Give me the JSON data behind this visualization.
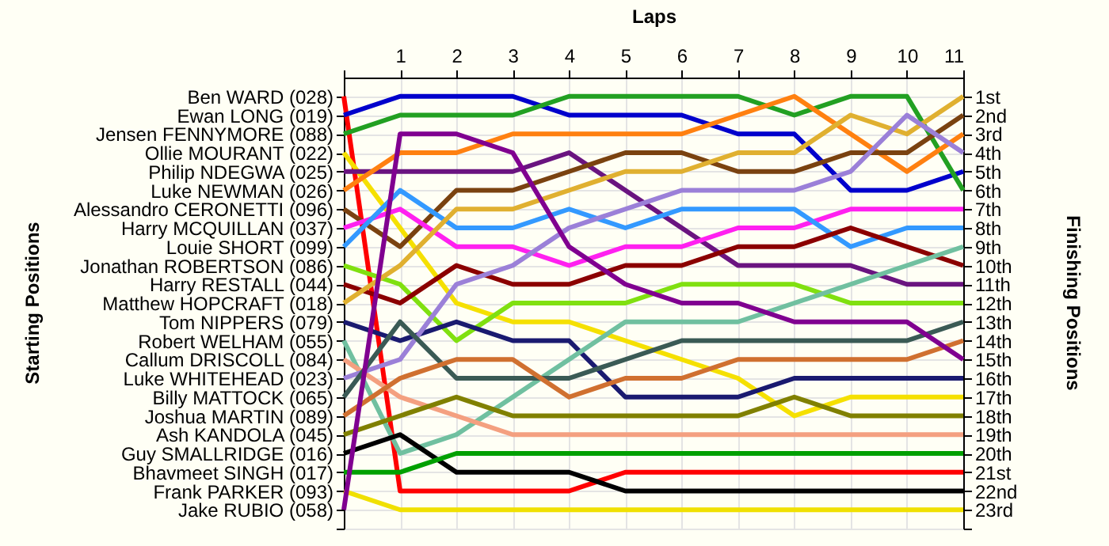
{
  "chart_data": {
    "type": "line",
    "xlabel": "Laps",
    "ylabel": "Finishing Positions",
    "grid": true,
    "annotations": [
      "Starting Positions",
      "Ben WARD (028)",
      "Ewan LONG (019)",
      "Jensen FENNYMORE (088)",
      "Ollie MOURANT (022)",
      "Philip NDEGWA (025)",
      "Luke NEWMAN (026)",
      "Alessandro CERONETTI (096)",
      "Harry MCQUILLAN (037)",
      "Louie SHORT (099)",
      "Jonathan ROBERTSON (086)",
      "Harry RESTALL (044)",
      "Matthew HOPCRAFT (018)",
      "Tom NIPPERS (079)",
      "Robert WELHAM (055)",
      "Callum DRISCOLL (084)",
      "Luke WHITEHEAD (023)",
      "Billy MATTOCK (065)",
      "Joshua MARTIN (089)",
      "Ash KANDOLA (045)",
      "Guy SMALLRIDGE (016)",
      "Bhavmeet SINGH (017)",
      "Frank PARKER (093)",
      "Jake RUBIO (058)"
    ],
    "x": [
      0,
      1,
      2,
      3,
      4,
      5,
      6,
      7,
      8,
      9,
      10,
      11
    ],
    "xlim": [
      0,
      11
    ],
    "xticks": [
      {
        "value": 0,
        "label": null
      },
      1,
      2,
      3,
      4,
      5,
      6,
      7,
      8,
      9,
      10,
      11
    ],
    "ylim": [
      24,
      0
    ],
    "yticks": [
      {
        "value": 1,
        "label": "1st"
      },
      {
        "value": 2,
        "label": "2nd"
      },
      {
        "value": 3,
        "label": "3rd"
      },
      {
        "value": 4,
        "label": "4th"
      },
      {
        "value": 5,
        "label": "5th"
      },
      {
        "value": 6,
        "label": "6th"
      },
      {
        "value": 7,
        "label": "7th"
      },
      {
        "value": 8,
        "label": "8th"
      },
      {
        "value": 9,
        "label": "9th"
      },
      {
        "value": 10,
        "label": "10th"
      },
      {
        "value": 11,
        "label": "11th"
      },
      {
        "value": 12,
        "label": "12th"
      },
      {
        "value": 13,
        "label": "13th"
      },
      {
        "value": 14,
        "label": "14th"
      },
      {
        "value": 15,
        "label": "15th"
      },
      {
        "value": 16,
        "label": "16th"
      },
      {
        "value": 17,
        "label": "17th"
      },
      {
        "value": 18,
        "label": "18th"
      },
      {
        "value": 19,
        "label": "19th"
      },
      {
        "value": 20,
        "label": "20th"
      },
      {
        "value": 21,
        "label": "21st"
      },
      {
        "value": 22,
        "label": "22nd"
      },
      {
        "value": 23,
        "label": "23rd"
      },
      {
        "value": 24,
        "label": null
      }
    ],
    "series": [
      {
        "color": "#ff0000",
        "values": [
          1,
          22,
          22,
          22,
          22,
          21,
          21,
          21,
          21,
          21,
          21,
          21
        ]
      },
      {
        "color": "#0000cc",
        "values": [
          2,
          1,
          1,
          1,
          2,
          2,
          2,
          3,
          3,
          6,
          6,
          5
        ]
      },
      {
        "color": "#22a022",
        "values": [
          3,
          2,
          2,
          2,
          1,
          1,
          1,
          1,
          2,
          1,
          1,
          6
        ]
      },
      {
        "color": "#f5e000",
        "values": [
          4,
          8,
          12,
          13,
          13,
          14,
          15,
          16,
          18,
          17,
          17,
          17
        ]
      },
      {
        "color": "#6a1480",
        "values": [
          5,
          5,
          5,
          5,
          4,
          6,
          8,
          10,
          10,
          10,
          11,
          11
        ]
      },
      {
        "color": "#ff8010",
        "values": [
          6,
          4,
          4,
          3,
          3,
          3,
          3,
          2,
          1,
          3,
          5,
          3
        ]
      },
      {
        "color": "#7a4210",
        "values": [
          7,
          9,
          6,
          6,
          5,
          4,
          4,
          5,
          5,
          4,
          4,
          2
        ]
      },
      {
        "color": "#ff20f0",
        "values": [
          8,
          7,
          9,
          9,
          10,
          9,
          9,
          8,
          8,
          7,
          7,
          7
        ]
      },
      {
        "color": "#3399ff",
        "values": [
          9,
          6,
          8,
          8,
          7,
          8,
          7,
          7,
          7,
          9,
          8,
          8
        ]
      },
      {
        "color": "#80e010",
        "values": [
          10,
          11,
          14,
          12,
          12,
          12,
          11,
          11,
          11,
          12,
          12,
          12
        ]
      },
      {
        "color": "#8b0000",
        "values": [
          11,
          12,
          10,
          11,
          11,
          10,
          10,
          9,
          9,
          8,
          9,
          10
        ]
      },
      {
        "color": "#e0b030",
        "values": [
          12,
          10,
          7,
          7,
          6,
          5,
          5,
          4,
          4,
          2,
          3,
          1
        ]
      },
      {
        "color": "#1a1a70",
        "values": [
          13,
          14,
          13,
          14,
          14,
          17,
          17,
          17,
          16,
          16,
          16,
          16
        ]
      },
      {
        "color": "#70c0a0",
        "values": [
          14,
          20,
          19,
          17,
          15,
          13,
          13,
          13,
          12,
          11,
          10,
          9
        ]
      },
      {
        "color": "#f4a080",
        "values": [
          15,
          17,
          18,
          19,
          19,
          19,
          19,
          19,
          19,
          19,
          19,
          19
        ]
      },
      {
        "color": "#9b80d8",
        "values": [
          16,
          15,
          11,
          10,
          8,
          7,
          6,
          6,
          6,
          5,
          2,
          4
        ]
      },
      {
        "color": "#3a5a55",
        "values": [
          17,
          13,
          16,
          16,
          16,
          15,
          14,
          14,
          14,
          14,
          14,
          13
        ]
      },
      {
        "color": "#d07030",
        "values": [
          18,
          16,
          15,
          15,
          17,
          16,
          16,
          15,
          15,
          15,
          15,
          14
        ]
      },
      {
        "color": "#808000",
        "values": [
          19,
          18,
          17,
          18,
          18,
          18,
          18,
          18,
          17,
          18,
          18,
          18
        ]
      },
      {
        "color": "#000000",
        "values": [
          20,
          19,
          21,
          21,
          21,
          22,
          22,
          22,
          22,
          22,
          22,
          22
        ]
      },
      {
        "color": "#00a000",
        "values": [
          21,
          21,
          20,
          20,
          20,
          20,
          20,
          20,
          20,
          20,
          20,
          20
        ]
      },
      {
        "color": "#f0e000",
        "values": [
          22,
          23,
          23,
          23,
          23,
          23,
          23,
          23,
          23,
          23,
          23,
          23
        ]
      },
      {
        "color": "#800090",
        "values": [
          23,
          3,
          3,
          4,
          9,
          11,
          12,
          12,
          13,
          13,
          13,
          15
        ]
      }
    ]
  }
}
